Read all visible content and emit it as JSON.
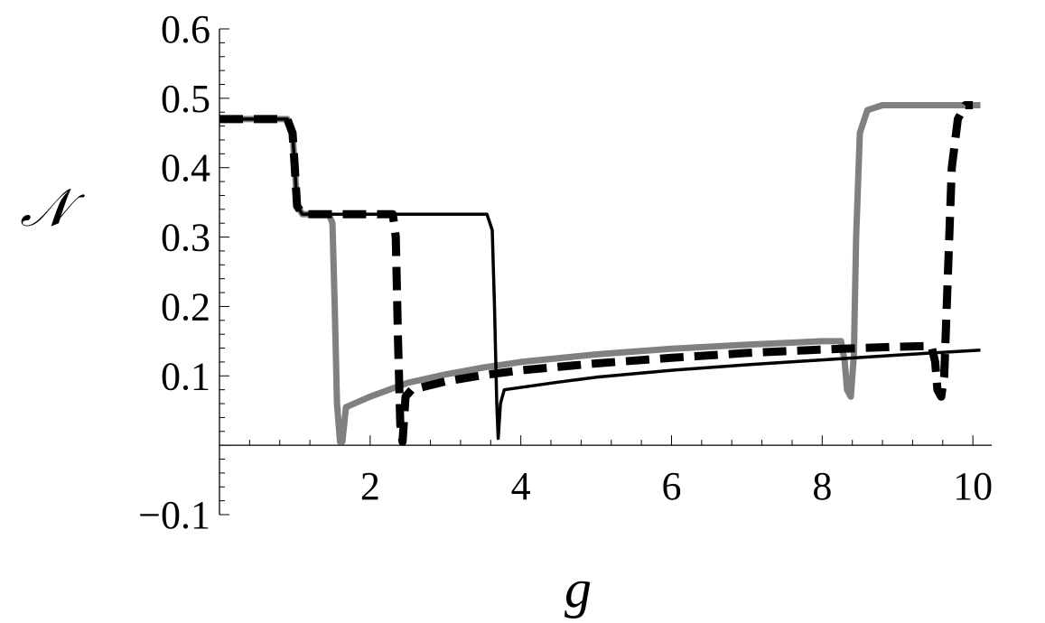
{
  "chart_data": {
    "type": "line",
    "title": "",
    "xlabel": "g",
    "ylabel": "𝒩",
    "xlim": [
      0,
      10.25
    ],
    "ylim": [
      -0.1,
      0.6
    ],
    "x_ticks": [
      2,
      4,
      6,
      8,
      10
    ],
    "x_tick_labels": [
      "2",
      "4",
      "6",
      "8",
      "10"
    ],
    "y_ticks": [
      -0.1,
      0.1,
      0.2,
      0.3,
      0.4,
      0.5,
      0.6
    ],
    "y_tick_labels": [
      "−0.1",
      "0.1",
      "0.2",
      "0.3",
      "0.4",
      "0.5",
      "0.6"
    ],
    "grid": false,
    "legend": "none",
    "series": [
      {
        "color": "#808080",
        "style": "solid-thick",
        "points": [
          [
            0,
            0.47
          ],
          [
            0.9,
            0.47
          ],
          [
            0.97,
            0.45
          ],
          [
            1.0,
            0.4
          ],
          [
            1.03,
            0.345
          ],
          [
            1.1,
            0.333
          ],
          [
            1.45,
            0.333
          ],
          [
            1.5,
            0.32
          ],
          [
            1.53,
            0.2
          ],
          [
            1.56,
            0.06
          ],
          [
            1.6,
            0.005
          ],
          [
            1.63,
            0.005
          ],
          [
            1.68,
            0.055
          ],
          [
            2.0,
            0.07
          ],
          [
            2.5,
            0.09
          ],
          [
            3.0,
            0.102
          ],
          [
            3.5,
            0.112
          ],
          [
            4.0,
            0.12
          ],
          [
            5.0,
            0.131
          ],
          [
            6.0,
            0.139
          ],
          [
            7.0,
            0.145
          ],
          [
            8.0,
            0.15
          ],
          [
            8.25,
            0.15
          ],
          [
            8.3,
            0.12
          ],
          [
            8.33,
            0.08
          ],
          [
            8.38,
            0.07
          ],
          [
            8.42,
            0.13
          ],
          [
            8.45,
            0.3
          ],
          [
            8.5,
            0.45
          ],
          [
            8.6,
            0.483
          ],
          [
            8.8,
            0.49
          ],
          [
            10.1,
            0.49
          ]
        ]
      },
      {
        "color": "#000000",
        "style": "solid-thin",
        "points": [
          [
            0,
            0.47
          ],
          [
            0.9,
            0.47
          ],
          [
            0.97,
            0.45
          ],
          [
            1.0,
            0.4
          ],
          [
            1.03,
            0.345
          ],
          [
            1.1,
            0.333
          ],
          [
            3.55,
            0.333
          ],
          [
            3.62,
            0.31
          ],
          [
            3.65,
            0.2
          ],
          [
            3.68,
            0.06
          ],
          [
            3.7,
            0.01
          ],
          [
            3.73,
            0.06
          ],
          [
            3.78,
            0.08
          ],
          [
            4.5,
            0.091
          ],
          [
            5.0,
            0.098
          ],
          [
            6.0,
            0.108
          ],
          [
            7.0,
            0.116
          ],
          [
            8.0,
            0.123
          ],
          [
            9.0,
            0.13
          ],
          [
            10.1,
            0.137
          ]
        ]
      },
      {
        "color": "#000000",
        "style": "dashed-thick",
        "points": [
          [
            0,
            0.47
          ],
          [
            0.9,
            0.47
          ],
          [
            0.97,
            0.45
          ],
          [
            1.0,
            0.4
          ],
          [
            1.03,
            0.345
          ],
          [
            1.1,
            0.333
          ],
          [
            2.3,
            0.333
          ],
          [
            2.34,
            0.3
          ],
          [
            2.37,
            0.15
          ],
          [
            2.4,
            0.03
          ],
          [
            2.43,
            0.005
          ],
          [
            2.47,
            0.07
          ],
          [
            2.55,
            0.08
          ],
          [
            3.0,
            0.092
          ],
          [
            3.5,
            0.101
          ],
          [
            4.0,
            0.108
          ],
          [
            5.0,
            0.118
          ],
          [
            6.0,
            0.126
          ],
          [
            7.0,
            0.133
          ],
          [
            8.0,
            0.138
          ],
          [
            9.0,
            0.142
          ],
          [
            9.45,
            0.143
          ],
          [
            9.5,
            0.12
          ],
          [
            9.53,
            0.08
          ],
          [
            9.58,
            0.07
          ],
          [
            9.62,
            0.1
          ],
          [
            9.67,
            0.25
          ],
          [
            9.72,
            0.4
          ],
          [
            9.8,
            0.47
          ],
          [
            9.9,
            0.49
          ],
          [
            10.0,
            0.49
          ]
        ]
      }
    ]
  }
}
